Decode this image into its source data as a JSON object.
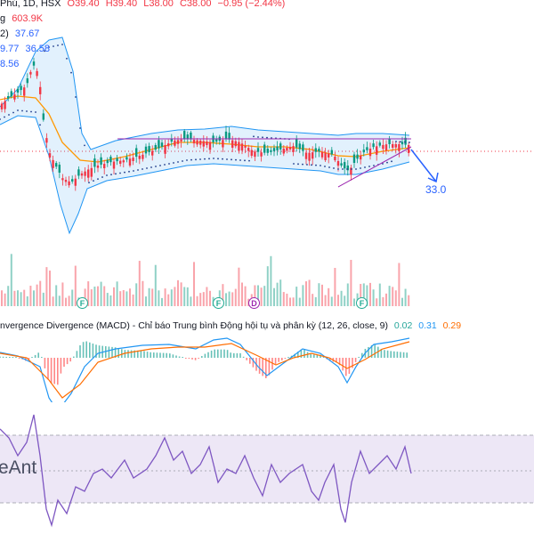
{
  "header": {
    "symbol_fragment": "Phú, 1D, HSX",
    "open": "O39.40",
    "high": "H39.40",
    "low": "L38.00",
    "close": "C38.00",
    "change": "−0.95 (−2.44%)"
  },
  "volume_legend": {
    "label": "g",
    "value": "603.9K"
  },
  "ma_legend": {
    "label": "2)",
    "value": "37.67"
  },
  "bb_legend": {
    "values": [
      "9.77",
      "36.58"
    ]
  },
  "bb_lower_legend": {
    "value": "8.56"
  },
  "target": {
    "label": "33.0"
  },
  "event_badges": [
    {
      "letter": "F",
      "kind": "dividend"
    },
    {
      "letter": "F",
      "kind": "dividend"
    },
    {
      "letter": "D",
      "kind": "dividend"
    },
    {
      "letter": "F",
      "kind": "dividend"
    }
  ],
  "macd": {
    "title": "nvergence Divergence (MACD) - Chỉ báo Trung bình Động hội tụ và phân kỳ (12, 26, close, 9)",
    "values": [
      "0.02",
      "0.31",
      "0.29"
    ]
  },
  "watermark": "eAnt",
  "colors": {
    "up": "#089981",
    "down": "#f23645",
    "bb": "#2196f3",
    "ma": "#ff9800",
    "macd_line": "#2196f3",
    "signal_line": "#ff6d00",
    "rsi_line": "#7e57c2",
    "rsi_band": "#ede7f6",
    "trendline": "#9c27b0",
    "target_arrow": "#2962ff"
  }
}
